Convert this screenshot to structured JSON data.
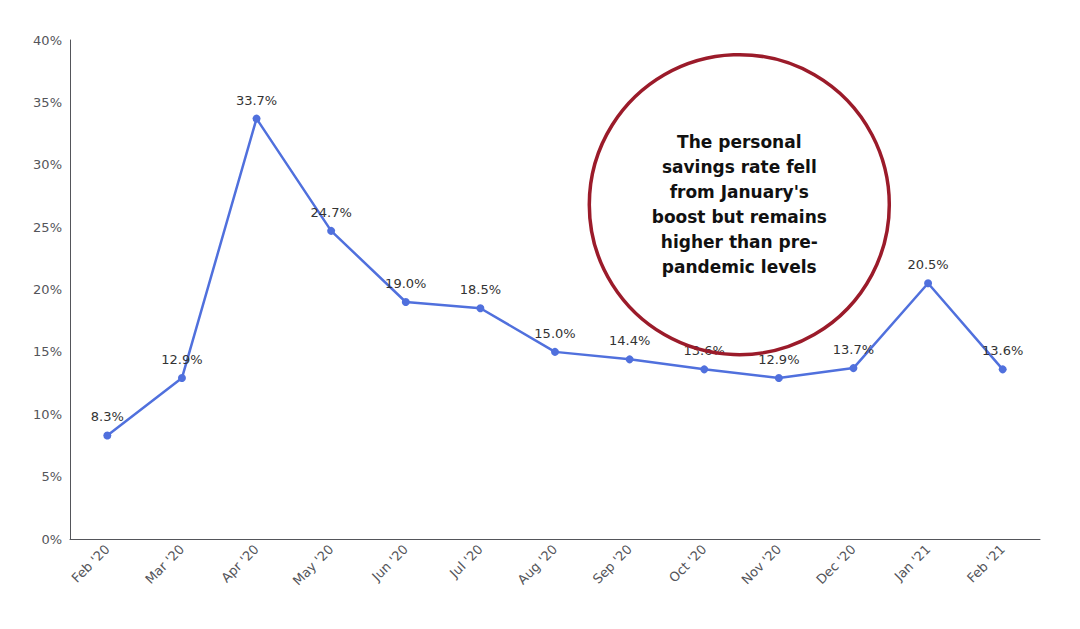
{
  "chart_data": {
    "type": "line",
    "categories": [
      "Feb '20",
      "Mar '20",
      "Apr '20",
      "May '20",
      "Jun '20",
      "Jul '20",
      "Aug '20",
      "Sep '20",
      "Oct '20",
      "Nov '20",
      "Dec '20",
      "Jan '21",
      "Feb '21"
    ],
    "values": [
      8.3,
      12.9,
      33.7,
      24.7,
      19.0,
      18.5,
      15.0,
      14.4,
      13.6,
      12.9,
      13.7,
      20.5,
      13.6
    ],
    "value_labels": [
      "8.3%",
      "12.9%",
      "33.7%",
      "24.7%",
      "19.0%",
      "18.5%",
      "15.0%",
      "14.4%",
      "13.6%",
      "12.9%",
      "13.7%",
      "20.5%",
      "13.6%"
    ],
    "data_labels": true,
    "marker": "circle",
    "ylim": [
      0,
      40
    ],
    "yticks": [
      {
        "value": 0,
        "label": "0%"
      },
      {
        "value": 5,
        "label": "5%"
      },
      {
        "value": 10,
        "label": "10%"
      },
      {
        "value": 15,
        "label": "15%"
      },
      {
        "value": 20,
        "label": "20%"
      },
      {
        "value": 25,
        "label": "25%"
      },
      {
        "value": 30,
        "label": "30%"
      },
      {
        "value": 35,
        "label": "35%"
      },
      {
        "value": 40,
        "label": "40%"
      }
    ],
    "grid": false,
    "annotations": [
      {
        "text": "The personal\nsavings rate fell\nfrom January's\nboost but remains\nhigher than pre-\npandemic levels",
        "color": "#9b1b2a"
      }
    ]
  }
}
